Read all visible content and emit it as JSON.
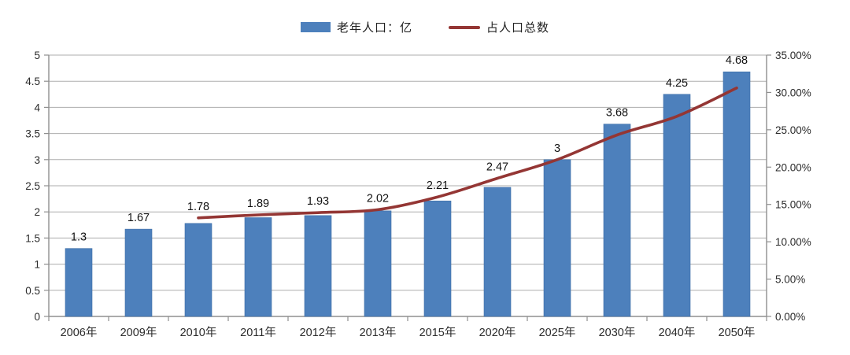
{
  "page": {
    "background": "#ffffff"
  },
  "legend": {
    "items": [
      {
        "label": "老年人口：亿",
        "swatch": "bar-swatch",
        "color": "#4d80bc"
      },
      {
        "label": "占人口总数",
        "swatch": "line-swatch",
        "color": "#943634"
      }
    ]
  },
  "chart_data": {
    "type": "bar",
    "subtype": "combo-bar-line",
    "title": "",
    "categories": [
      "2006年",
      "2009年",
      "2010年",
      "2011年",
      "2012年",
      "2013年",
      "2015年",
      "2020年",
      "2025年",
      "2030年",
      "2040年",
      "2050年"
    ],
    "series": [
      {
        "name": "老年人口：亿",
        "type": "bar",
        "axis": "left",
        "color": "#4d80bc",
        "values": [
          1.3,
          1.67,
          1.78,
          1.89,
          1.93,
          2.02,
          2.21,
          2.47,
          3,
          3.68,
          4.25,
          4.68
        ],
        "labels": [
          "1.3",
          "1.67",
          "1.78",
          "1.89",
          "1.93",
          "2.02",
          "2.21",
          "2.47",
          "3",
          "3.68",
          "4.25",
          "4.68"
        ]
      },
      {
        "name": "占人口总数",
        "type": "line",
        "axis": "right",
        "color": "#943634",
        "values": [
          null,
          null,
          13.2,
          13.6,
          13.9,
          14.3,
          16.0,
          18.5,
          21.0,
          24.3,
          26.8,
          30.6
        ]
      }
    ],
    "left_axis": {
      "min": 0,
      "max": 5,
      "step": 0.5,
      "ticks": [
        "0",
        "0.5",
        "1",
        "1.5",
        "2",
        "2.5",
        "3",
        "3.5",
        "4",
        "4.5",
        "5"
      ]
    },
    "right_axis": {
      "min": 0,
      "max": 35,
      "step": 5,
      "ticks": [
        "0.00%",
        "5.00%",
        "10.00%",
        "15.00%",
        "20.00%",
        "25.00%",
        "30.00%",
        "35.00%"
      ]
    },
    "grid": true,
    "legend_position": "top-center",
    "colors": {
      "grid": "#adadad",
      "axis": "#8f8f8f",
      "tick_text": "#2b2b2b",
      "bar_label_text": "#121212"
    }
  }
}
